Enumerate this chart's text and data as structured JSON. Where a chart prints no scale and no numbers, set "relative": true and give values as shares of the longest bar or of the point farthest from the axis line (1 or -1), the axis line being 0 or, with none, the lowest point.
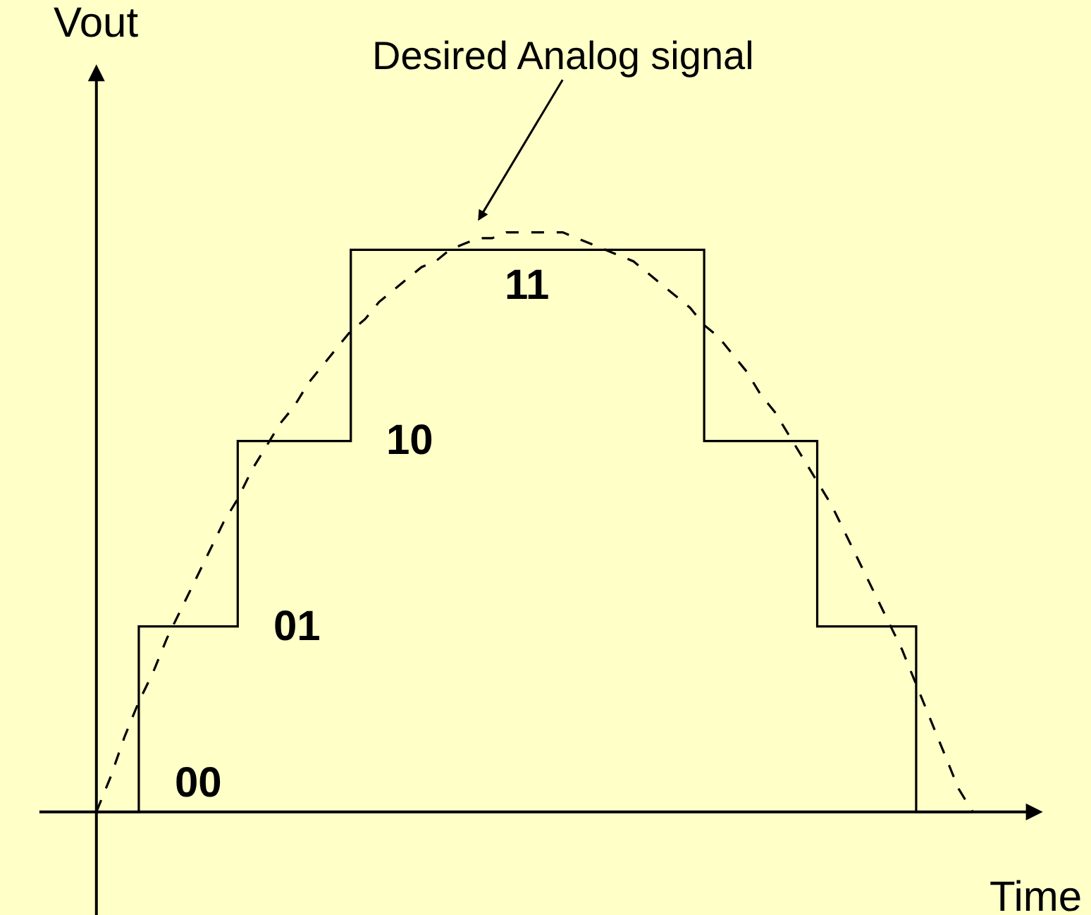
{
  "chart_data": {
    "type": "line",
    "relative": true,
    "xlabel": "Time",
    "ylabel": "Vout",
    "legend": false,
    "grid": false,
    "categories": [
      null,
      null,
      null,
      null,
      null,
      null,
      null,
      null,
      null,
      null,
      null,
      null,
      null,
      null,
      null,
      null,
      null,
      null,
      null,
      null,
      null,
      null,
      null,
      null,
      null,
      null,
      null,
      null,
      null,
      null,
      null,
      null,
      null,
      null,
      null,
      null,
      null,
      null,
      null,
      null,
      null,
      null,
      null,
      null,
      null,
      null,
      null,
      null,
      null,
      null,
      null,
      null,
      null,
      null,
      null,
      null,
      null,
      null,
      null,
      null,
      null,
      null,
      null
    ],
    "series": [
      {
        "type": "step",
        "color": "#000000",
        "line_style": "solid",
        "values": [
          0,
          0,
          0,
          0.32,
          0.32,
          0.32,
          0.32,
          0.32,
          0.32,
          0.32,
          0.64,
          0.64,
          0.64,
          0.64,
          0.64,
          0.64,
          0.64,
          0.64,
          0.97,
          0.97,
          0.97,
          0.97,
          0.97,
          0.97,
          0.97,
          0.97,
          0.97,
          0.97,
          0.97,
          0.97,
          0.97,
          0.97,
          0.97,
          0.97,
          0.97,
          0.97,
          0.97,
          0.97,
          0.97,
          0.97,
          0.97,
          0.97,
          0.97,
          0.64,
          0.64,
          0.64,
          0.64,
          0.64,
          0.64,
          0.64,
          0.64,
          0.32,
          0.32,
          0.32,
          0.32,
          0.32,
          0.32,
          0.32,
          0,
          0,
          0,
          0,
          0
        ]
      },
      {
        "color": "#000000",
        "line_style": "dashed",
        "values": [
          0,
          0.06,
          0.13,
          0.19,
          0.24,
          0.3,
          0.35,
          0.4,
          0.45,
          0.5,
          0.54,
          0.59,
          0.63,
          0.67,
          0.7,
          0.74,
          0.77,
          0.8,
          0.83,
          0.85,
          0.88,
          0.9,
          0.92,
          0.94,
          0.95,
          0.97,
          0.98,
          0.99,
          0.99,
          1.0,
          1.0,
          1.0,
          1.0,
          1.0,
          0.99,
          0.98,
          0.97,
          0.96,
          0.95,
          0.93,
          0.91,
          0.89,
          0.87,
          0.84,
          0.82,
          0.79,
          0.76,
          0.72,
          0.69,
          0.65,
          0.61,
          0.57,
          0.53,
          0.48,
          0.43,
          0.38,
          0.33,
          0.28,
          0.22,
          0.16,
          0.1,
          0.04,
          0
        ]
      }
    ],
    "annotations": [
      "00",
      "01",
      "10",
      "11",
      "Desired Analog signal"
    ]
  }
}
